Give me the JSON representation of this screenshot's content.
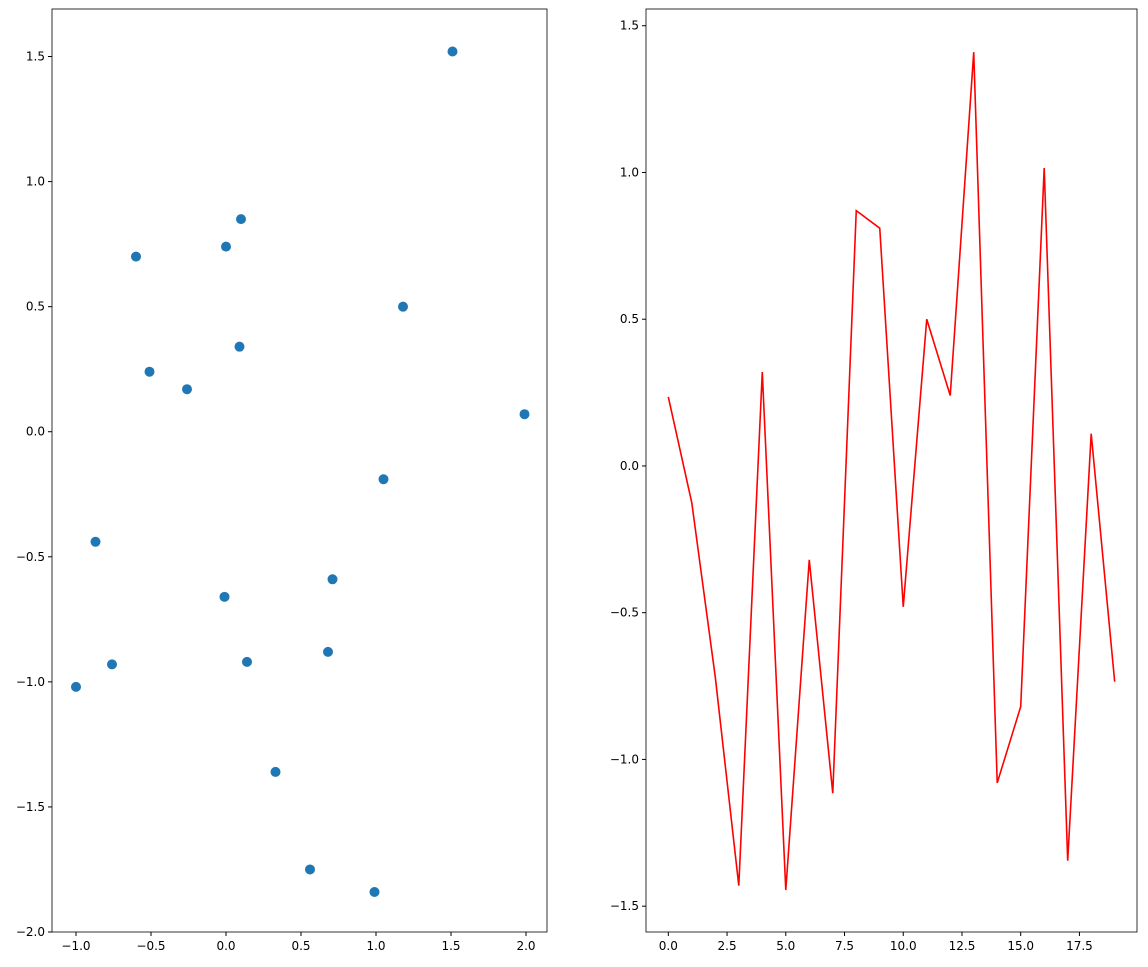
{
  "chart_data": [
    {
      "type": "scatter",
      "color": "#1f77b4",
      "x": [
        1.51,
        0.1,
        0.0,
        -0.6,
        1.18,
        0.09,
        -0.51,
        -0.26,
        1.99,
        1.05,
        -0.87,
        0.71,
        -0.01,
        0.68,
        0.14,
        -0.76,
        -1.0,
        0.33,
        0.56,
        0.99
      ],
      "values": [
        1.52,
        0.85,
        0.74,
        0.7,
        0.5,
        0.34,
        0.24,
        0.17,
        0.07,
        -0.19,
        -0.44,
        -0.59,
        -0.66,
        -0.88,
        -0.92,
        -0.93,
        -1.02,
        -1.36,
        -1.75,
        -1.84
      ],
      "xlim": [
        -1.16,
        2.14
      ],
      "ylim": [
        -2.0,
        1.69
      ],
      "xticks": [
        {
          "value": -1.0,
          "label": "−1.0"
        },
        {
          "value": -0.5,
          "label": "−0.5"
        },
        {
          "value": 0.0,
          "label": "0.0"
        },
        {
          "value": 0.5,
          "label": "0.5"
        },
        {
          "value": 1.0,
          "label": "1.0"
        },
        {
          "value": 1.5,
          "label": "1.5"
        },
        {
          "value": 2.0,
          "label": "2.0"
        }
      ],
      "yticks": [
        {
          "value": -2.0,
          "label": "−2.0"
        },
        {
          "value": -1.5,
          "label": "−1.5"
        },
        {
          "value": -1.0,
          "label": "−1.0"
        },
        {
          "value": -0.5,
          "label": "−0.5"
        },
        {
          "value": 0.0,
          "label": "0.0"
        },
        {
          "value": 0.5,
          "label": "0.5"
        },
        {
          "value": 1.0,
          "label": "1.0"
        },
        {
          "value": 1.5,
          "label": "1.5"
        }
      ]
    },
    {
      "type": "line",
      "color": "#ff0000",
      "x": [
        0,
        1,
        2,
        3,
        4,
        5,
        6,
        7,
        8,
        9,
        10,
        11,
        12,
        13,
        14,
        15,
        16,
        17,
        18,
        19
      ],
      "values": [
        0.235,
        -0.126,
        -0.72,
        -1.43,
        0.32,
        -1.445,
        -0.32,
        -1.115,
        0.87,
        0.81,
        -0.48,
        0.5,
        0.24,
        1.41,
        -1.08,
        -0.82,
        1.015,
        -1.345,
        0.11,
        -0.735
      ],
      "xlim": [
        -0.95,
        19.95
      ],
      "ylim": [
        -1.588,
        1.557
      ],
      "xticks": [
        {
          "value": 0.0,
          "label": "0.0"
        },
        {
          "value": 2.5,
          "label": "2.5"
        },
        {
          "value": 5.0,
          "label": "5.0"
        },
        {
          "value": 7.5,
          "label": "7.5"
        },
        {
          "value": 10.0,
          "label": "10.0"
        },
        {
          "value": 12.5,
          "label": "12.5"
        },
        {
          "value": 15.0,
          "label": "15.0"
        },
        {
          "value": 17.5,
          "label": "17.5"
        }
      ],
      "yticks": [
        {
          "value": -1.5,
          "label": "−1.5"
        },
        {
          "value": -1.0,
          "label": "−1.0"
        },
        {
          "value": -0.5,
          "label": "−0.5"
        },
        {
          "value": 0.0,
          "label": "0.0"
        },
        {
          "value": 0.5,
          "label": "0.5"
        },
        {
          "value": 1.0,
          "label": "1.0"
        },
        {
          "value": 1.5,
          "label": "1.5"
        }
      ]
    }
  ]
}
